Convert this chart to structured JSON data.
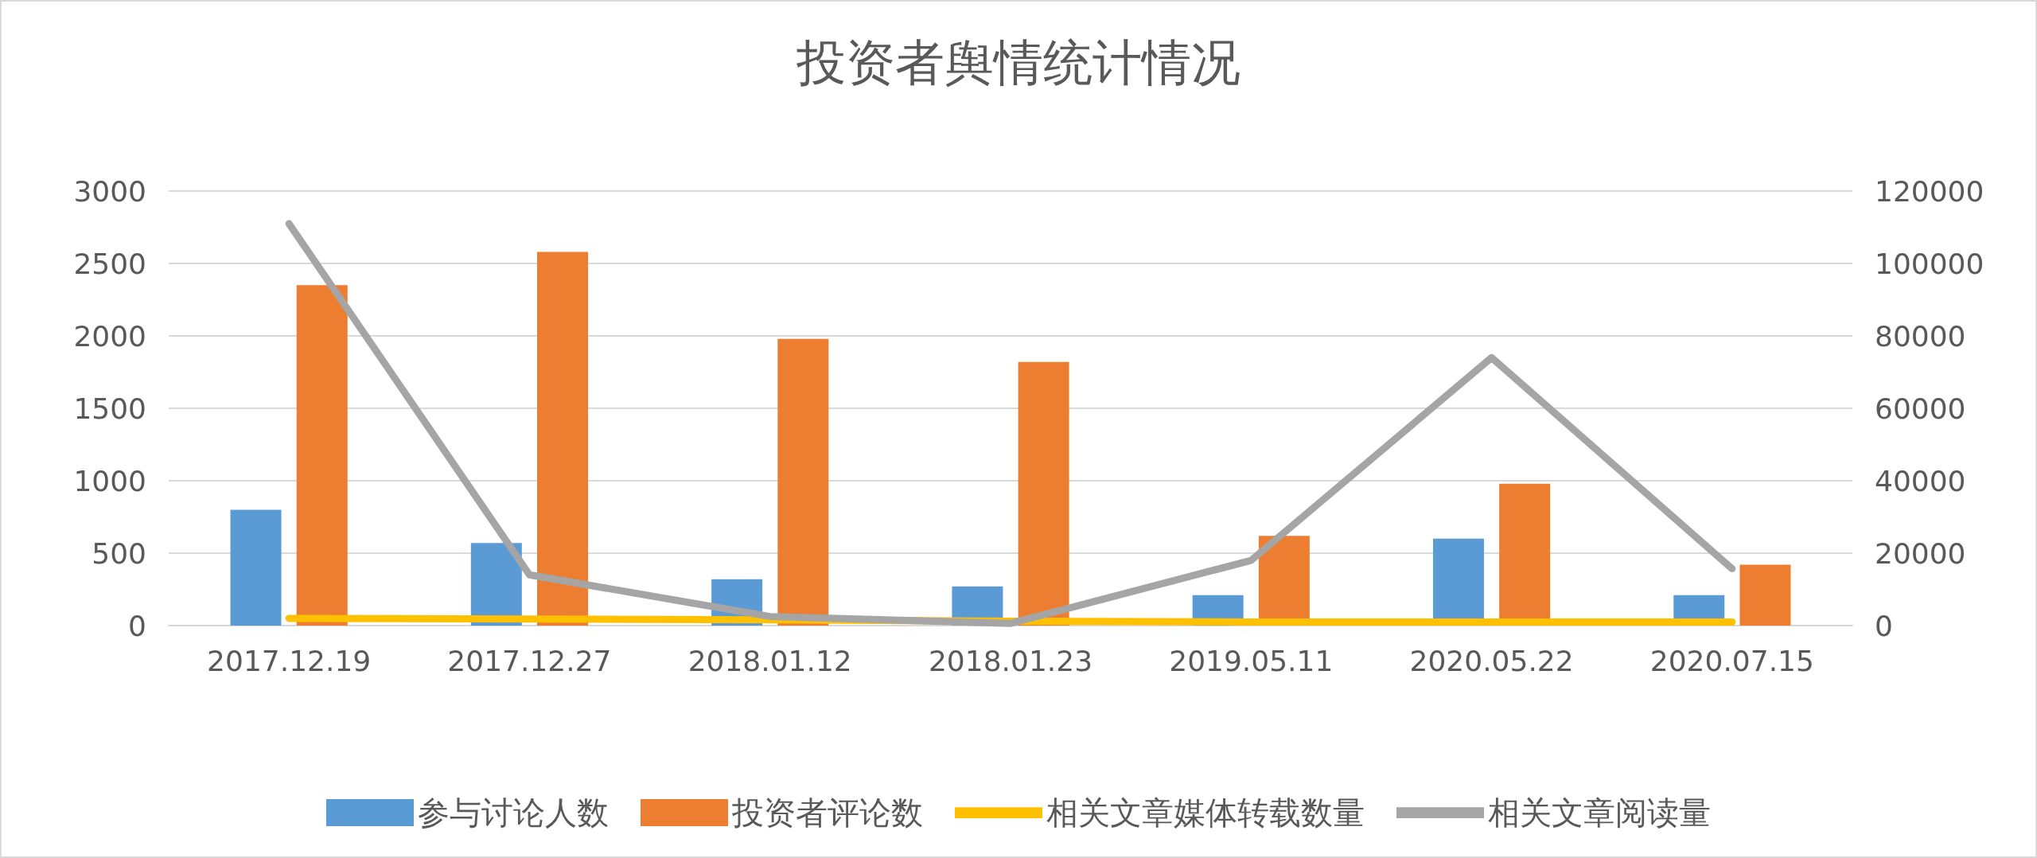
{
  "chart_data": {
    "type": "bar",
    "title": "投资者舆情统计情况",
    "categories": [
      "2017.12.19",
      "2017.12.27",
      "2018.01.12",
      "2018.01.23",
      "2019.05.11",
      "2020.05.22",
      "2020.07.15"
    ],
    "series": [
      {
        "name": "参与讨论人数",
        "color": "#5b9bd5",
        "values": [
          800,
          570,
          320,
          270,
          210,
          600,
          210
        ]
      },
      {
        "name": "投资者评论数",
        "color": "#ed7d31",
        "values": [
          2350,
          2580,
          1980,
          1820,
          620,
          980,
          420
        ]
      },
      {
        "name": "相关文章媒体转载数量",
        "type": "line",
        "color": "#ffc000",
        "values": [
          50,
          45,
          40,
          30,
          25,
          25,
          25
        ]
      },
      {
        "name": "相关文章阅读量",
        "type": "line",
        "axis": "y2",
        "color": "#a5a5a5",
        "values": [
          111000,
          14000,
          2500,
          600,
          18000,
          74000,
          15700
        ]
      }
    ],
    "ylim": [
      0,
      3000
    ],
    "yticks": [
      0,
      500,
      1000,
      1500,
      2000,
      2500,
      3000
    ],
    "y2lim": [
      0,
      120000
    ],
    "y2ticks": [
      0,
      20000,
      40000,
      60000,
      80000,
      100000,
      120000
    ],
    "grid": "y",
    "legend": "bottom",
    "marker": "none",
    "line_style": "solid"
  }
}
